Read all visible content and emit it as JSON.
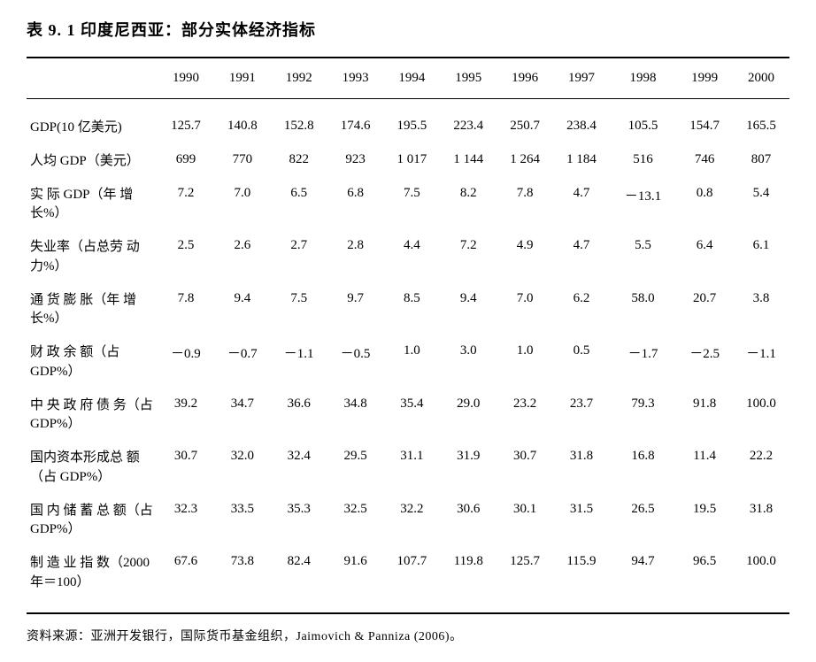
{
  "title": "表 9. 1  印度尼西亚：部分实体经济指标",
  "columns": [
    "",
    "1990",
    "1991",
    "1992",
    "1993",
    "1994",
    "1995",
    "1996",
    "1997",
    "1998",
    "1999",
    "2000"
  ],
  "rows": [
    {
      "label": "GDP(10 亿美元)",
      "values": [
        "125.7",
        "140.8",
        "152.8",
        "174.6",
        "195.5",
        "223.4",
        "250.7",
        "238.4",
        "105.5",
        "154.7",
        "165.5"
      ]
    },
    {
      "label": "人均 GDP（美元）",
      "values": [
        "699",
        "770",
        "822",
        "923",
        "1 017",
        "1 144",
        "1 264",
        "1 184",
        "516",
        "746",
        "807"
      ]
    },
    {
      "label": "实 际 GDP（年 增长%）",
      "values": [
        "7.2",
        "7.0",
        "6.5",
        "6.8",
        "7.5",
        "8.2",
        "7.8",
        "4.7",
        "－13.1",
        "0.8",
        "5.4"
      ]
    },
    {
      "label": "失业率（占总劳 动力%）",
      "values": [
        "2.5",
        "2.6",
        "2.7",
        "2.8",
        "4.4",
        "7.2",
        "4.9",
        "4.7",
        "5.5",
        "6.4",
        "6.1"
      ]
    },
    {
      "label": "通 货 膨 胀（年 增长%）",
      "values": [
        "7.8",
        "9.4",
        "7.5",
        "9.7",
        "8.5",
        "9.4",
        "7.0",
        "6.2",
        "58.0",
        "20.7",
        "3.8"
      ]
    },
    {
      "label": "财 政 余 额（占 GDP%）",
      "values": [
        "－0.9",
        "－0.7",
        "－1.1",
        "－0.5",
        "1.0",
        "3.0",
        "1.0",
        "0.5",
        "－1.7",
        "－2.5",
        "－1.1"
      ]
    },
    {
      "label": "中 央 政 府 债 务（占 GDP%）",
      "values": [
        "39.2",
        "34.7",
        "36.6",
        "34.8",
        "35.4",
        "29.0",
        "23.2",
        "23.7",
        "79.3",
        "91.8",
        "100.0"
      ]
    },
    {
      "label": "国内资本形成总 额（占 GDP%）",
      "values": [
        "30.7",
        "32.0",
        "32.4",
        "29.5",
        "31.1",
        "31.9",
        "30.7",
        "31.8",
        "16.8",
        "11.4",
        "22.2"
      ]
    },
    {
      "label": "国 内 储 蓄 总 额（占 GDP%）",
      "values": [
        "32.3",
        "33.5",
        "35.3",
        "32.5",
        "32.2",
        "30.6",
        "30.1",
        "31.5",
        "26.5",
        "19.5",
        "31.8"
      ]
    },
    {
      "label": "制 造 业 指 数（2000 年＝100）",
      "values": [
        "67.6",
        "73.8",
        "82.4",
        "91.6",
        "107.7",
        "119.8",
        "125.7",
        "115.9",
        "94.7",
        "96.5",
        "100.0"
      ]
    }
  ],
  "footnote": "资料来源：亚洲开发银行，国际货币基金组织，Jaimovich & Panniza (2006)。",
  "styling": {
    "font_family": "SimSun",
    "title_fontsize": 18,
    "body_fontsize": 15,
    "footnote_fontsize": 14,
    "border_color": "#000000",
    "background_color": "#ffffff",
    "text_color": "#000000"
  }
}
